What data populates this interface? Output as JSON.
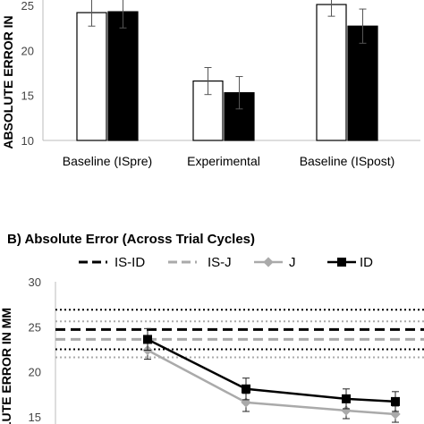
{
  "chart_data": [
    {
      "type": "bar",
      "ylabel": "ABSOLUTE ERROR IN",
      "ylim": [
        10,
        26
      ],
      "yticks": [
        "10",
        "15",
        "20",
        "25"
      ],
      "categories": [
        "Baseline (ISpre)",
        "Experimental",
        "Baseline (ISpost)"
      ],
      "series": [
        {
          "values": [
            24.2,
            16.6,
            25.1
          ],
          "errors": [
            1.5,
            1.5,
            1.3
          ],
          "color": "#ffffff"
        },
        {
          "values": [
            24.3,
            15.3,
            22.7
          ],
          "errors": [
            1.8,
            1.8,
            1.9
          ],
          "color": "#000000"
        }
      ],
      "grid": false
    },
    {
      "type": "line",
      "title": "B) Absolute Error (Across Trial Cycles)",
      "ylabel": "LUTE ERROR IN MM",
      "ylim": [
        15,
        30
      ],
      "yticks": [
        "15",
        "20",
        "25",
        "30"
      ],
      "x": [
        1,
        2,
        3,
        4
      ],
      "series": [
        {
          "name": "IS-ID",
          "style": "dashed",
          "color": "#000000",
          "value": 24.7
        },
        {
          "name": "IS-J",
          "style": "dashed",
          "color": "#aaaaaa",
          "value": 23.6
        },
        {
          "name": "J",
          "style": "line-diamond",
          "color": "#aaaaaa",
          "values": [
            22.4,
            16.6,
            15.7,
            15.3
          ],
          "errors": [
            1.0,
            1.0,
            0.9,
            0.9
          ]
        },
        {
          "name": "ID",
          "style": "line-square",
          "color": "#000000",
          "values": [
            23.6,
            18.1,
            17.0,
            16.7
          ],
          "errors": [
            1.2,
            1.2,
            1.1,
            1.1
          ]
        }
      ],
      "reference_lines": [
        {
          "color": "#000000",
          "style": "dotted",
          "value": 26.9
        },
        {
          "color": "#000000",
          "style": "dotted",
          "value": 22.5
        },
        {
          "color": "#aaaaaa",
          "style": "dotted",
          "value": 25.6
        },
        {
          "color": "#aaaaaa",
          "style": "dotted",
          "value": 21.6
        }
      ],
      "legend_placement": "top"
    }
  ]
}
